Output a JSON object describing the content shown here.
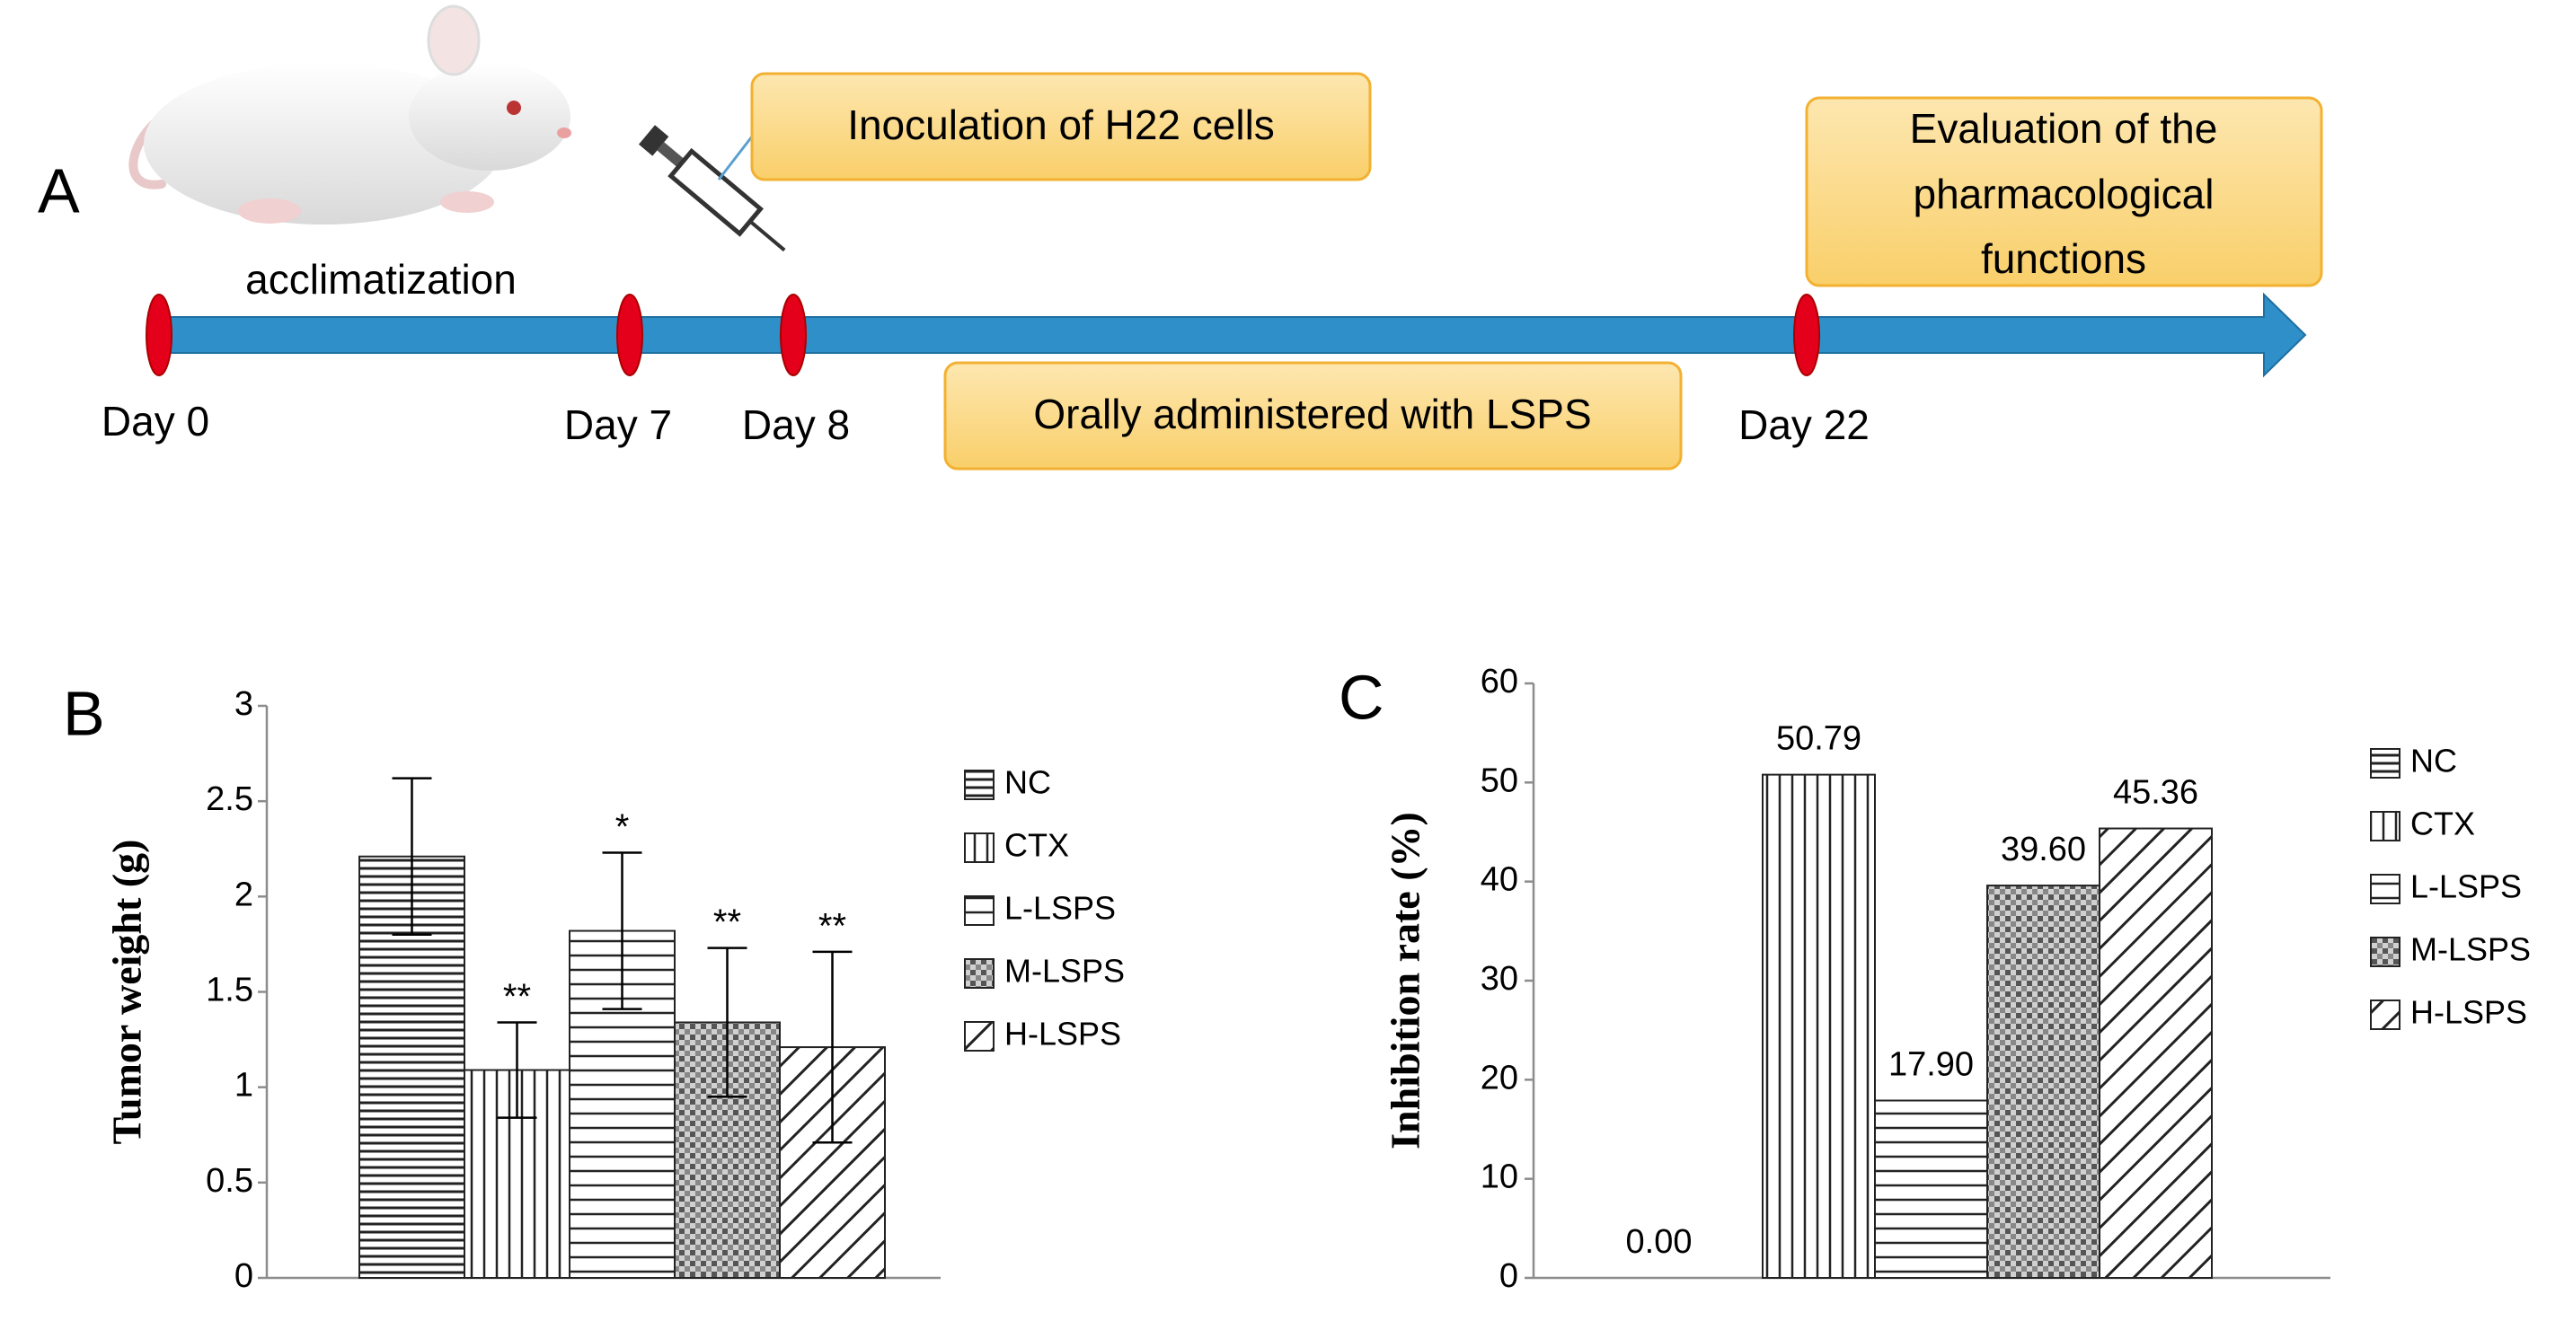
{
  "panel_a": {
    "label": "A",
    "stage": "acclimatization",
    "days": [
      "Day 0",
      "Day 7",
      "Day 8",
      "Day 22"
    ],
    "inoculation": "Inoculation of H22 cells",
    "treatment": "Orally administered with LSPS",
    "evaluation": [
      "Evaluation of the",
      "pharmacological",
      "functions"
    ]
  },
  "chart_data": [
    {
      "type": "bar",
      "panel_label": "B",
      "y_label": "Tumor weight (g)",
      "ylim": [
        0,
        3
      ],
      "yticks": [
        0,
        0.5,
        1,
        1.5,
        2,
        2.5,
        3
      ],
      "series": [
        {
          "name": "NC",
          "pattern": "hdense",
          "values": [
            2.21
          ],
          "errors": [
            0.41
          ],
          "annotations": [
            null
          ]
        },
        {
          "name": "CTX",
          "pattern": "vert",
          "values": [
            1.09
          ],
          "errors": [
            0.25
          ],
          "annotations": [
            "**"
          ]
        },
        {
          "name": "L-LSPS",
          "pattern": "hwide",
          "values": [
            1.82
          ],
          "errors": [
            0.41
          ],
          "annotations": [
            "*"
          ]
        },
        {
          "name": "M-LSPS",
          "pattern": "check",
          "values": [
            1.34
          ],
          "errors": [
            0.39
          ],
          "annotations": [
            "**"
          ]
        },
        {
          "name": "H-LSPS",
          "pattern": "diag",
          "values": [
            1.21
          ],
          "errors": [
            0.5
          ],
          "annotations": [
            "**"
          ]
        }
      ]
    },
    {
      "type": "bar",
      "panel_label": "C",
      "y_label": "Inhibition rate (%)",
      "ylim": [
        0,
        60
      ],
      "yticks": [
        0,
        10,
        20,
        30,
        40,
        50,
        60
      ],
      "series": [
        {
          "name": "NC",
          "pattern": "hdense",
          "values": [
            0
          ],
          "value_labels": [
            "0.00"
          ]
        },
        {
          "name": "CTX",
          "pattern": "vert",
          "values": [
            50.79
          ],
          "value_labels": [
            "50.79"
          ]
        },
        {
          "name": "L-LSPS",
          "pattern": "hwide",
          "values": [
            17.9
          ],
          "value_labels": [
            "17.90"
          ]
        },
        {
          "name": "M-LSPS",
          "pattern": "check",
          "values": [
            39.6
          ],
          "value_labels": [
            "39.60"
          ]
        },
        {
          "name": "H-LSPS",
          "pattern": "diag",
          "values": [
            45.36
          ],
          "value_labels": [
            "45.36"
          ]
        }
      ]
    }
  ]
}
